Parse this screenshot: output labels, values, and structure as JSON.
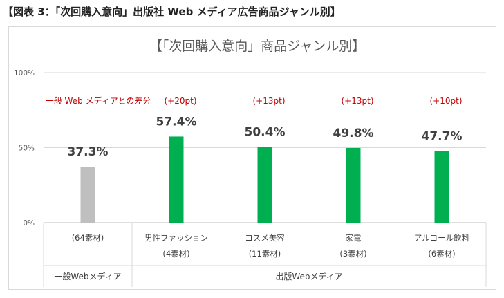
{
  "figure_title": "【図表 3：「次回購入意向」出版社 Web メディア広告商品ジャンル別】",
  "chart_data": {
    "type": "bar",
    "title": "【「次回購入意向」商品ジャンル別】",
    "ylim": [
      0,
      100
    ],
    "yticks": [
      "0%",
      "50%",
      "100%"
    ],
    "grid": true,
    "categories": [
      "(64素材)",
      "男性ファッション",
      "コスメ美容",
      "家電",
      "アルコール飲料"
    ],
    "category_sublabels": [
      "",
      "(4素材)",
      "(11素材)",
      "(3素材)",
      "(6素材)"
    ],
    "values": [
      37.3,
      57.4,
      50.4,
      49.8,
      47.7
    ],
    "value_labels": [
      "37.3%",
      "57.4%",
      "50.4%",
      "49.8%",
      "47.7%"
    ],
    "diff_header": "一般 Web メディアとの差分",
    "diff_labels": [
      "",
      "(+20pt)",
      "(+13pt)",
      "(+13pt)",
      "(+10pt)"
    ],
    "bar_colors": [
      "#bfbfbf",
      "#00b050",
      "#00b050",
      "#00b050",
      "#00b050"
    ],
    "groups": [
      {
        "label": "一般Webメディア",
        "categories": 1
      },
      {
        "label": "出版Webメディア",
        "categories": 4
      }
    ]
  }
}
